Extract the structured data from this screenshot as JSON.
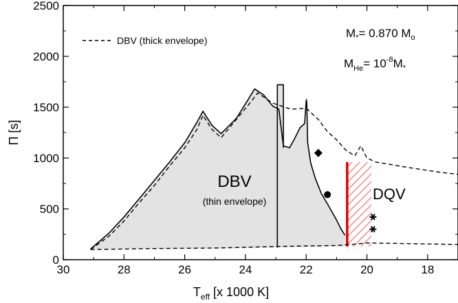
{
  "chart_data": {
    "type": "line",
    "xlabel": "T",
    "xlabel_sub": "eff",
    "xlabel_unit": " [x 1000 K]",
    "ylabel": "Π [s]",
    "xlim": [
      30,
      17
    ],
    "ylim": [
      0,
      2500
    ],
    "x_ticks": [
      30,
      28,
      26,
      24,
      22,
      20,
      18
    ],
    "y_ticks": [
      0,
      500,
      1000,
      1500,
      2000,
      2500
    ],
    "legend": {
      "placement": "top-left",
      "entries": [
        {
          "label": "DBV (thick envelope)",
          "style": "dashed"
        }
      ]
    },
    "annotations": {
      "mass": {
        "lhs": "M",
        "lhs_sub": "*",
        "rhs": "= 0.870 M",
        "rhs_sub": "o"
      },
      "helium": {
        "lhs": "M",
        "lhs_sub": "He",
        "rhs": "= 10",
        "rhs_sup": "-8",
        "tail": "M",
        "tail_sub": "*"
      },
      "dbv_label": "DBV",
      "dbv_sub": "(thin envelope)",
      "dqv_label": "DQV"
    },
    "series": [
      {
        "role": "thin-envelope-upper",
        "style": "solid",
        "points": [
          [
            29.1,
            105
          ],
          [
            28.5,
            260
          ],
          [
            28.0,
            420
          ],
          [
            27.5,
            600
          ],
          [
            27.0,
            780
          ],
          [
            26.5,
            960
          ],
          [
            26.0,
            1150
          ],
          [
            25.6,
            1350
          ],
          [
            25.4,
            1460
          ],
          [
            25.1,
            1320
          ],
          [
            24.8,
            1240
          ],
          [
            24.3,
            1390
          ],
          [
            23.9,
            1580
          ],
          [
            23.7,
            1680
          ],
          [
            23.4,
            1620
          ],
          [
            23.1,
            1510
          ],
          [
            22.9,
            1480
          ],
          [
            22.75,
            1120
          ],
          [
            22.55,
            1100
          ],
          [
            22.4,
            1180
          ],
          [
            22.2,
            1300
          ],
          [
            22.05,
            1340
          ],
          [
            22.0,
            1560
          ],
          [
            21.98,
            1580
          ]
        ]
      },
      {
        "role": "thin-envelope-lower",
        "style": "solid",
        "points": [
          [
            21.98,
            1560
          ],
          [
            21.95,
            1150
          ],
          [
            21.85,
            950
          ],
          [
            21.7,
            800
          ],
          [
            21.5,
            650
          ],
          [
            21.3,
            550
          ],
          [
            21.15,
            470
          ],
          [
            21.0,
            390
          ],
          [
            20.85,
            300
          ],
          [
            20.72,
            240
          ]
        ]
      },
      {
        "role": "thin-envelope-blue-edge",
        "style": "solid",
        "points": [
          [
            22.95,
            120
          ],
          [
            22.95,
            1720
          ],
          [
            22.75,
            1720
          ],
          [
            22.75,
            1100
          ]
        ]
      },
      {
        "role": "thick-envelope-upper",
        "style": "dashed",
        "points": [
          [
            29.1,
            100
          ],
          [
            28.5,
            230
          ],
          [
            28.0,
            380
          ],
          [
            27.5,
            560
          ],
          [
            27.0,
            730
          ],
          [
            26.5,
            920
          ],
          [
            26.0,
            1100
          ],
          [
            25.6,
            1280
          ],
          [
            25.4,
            1420
          ],
          [
            25.1,
            1280
          ],
          [
            24.8,
            1200
          ],
          [
            24.3,
            1380
          ],
          [
            23.8,
            1560
          ],
          [
            23.6,
            1640
          ],
          [
            23.1,
            1540
          ],
          [
            22.5,
            1480
          ],
          [
            22.0,
            1490
          ],
          [
            21.6,
            1380
          ],
          [
            21.3,
            1260
          ],
          [
            21.0,
            1180
          ],
          [
            20.7,
            1080
          ],
          [
            20.4,
            1020
          ],
          [
            20.2,
            1120
          ],
          [
            20.0,
            1000
          ],
          [
            19.7,
            960
          ],
          [
            18.7,
            910
          ],
          [
            17.6,
            860
          ],
          [
            17.0,
            840
          ]
        ]
      },
      {
        "role": "thick-envelope-lower",
        "style": "dashed",
        "points": [
          [
            29.1,
            100
          ],
          [
            27.0,
            110
          ],
          [
            25.0,
            115
          ],
          [
            23.0,
            130
          ],
          [
            22.0,
            135
          ],
          [
            21.0,
            140
          ],
          [
            20.5,
            150
          ],
          [
            20.0,
            165
          ],
          [
            18.0,
            155
          ],
          [
            17.0,
            150
          ]
        ]
      }
    ],
    "dbv_region": {
      "fill": "#e3e3e3",
      "points": [
        [
          29.1,
          105
        ],
        [
          28.5,
          260
        ],
        [
          28.0,
          420
        ],
        [
          27.5,
          600
        ],
        [
          27.0,
          780
        ],
        [
          26.5,
          960
        ],
        [
          26.0,
          1150
        ],
        [
          25.6,
          1350
        ],
        [
          25.4,
          1460
        ],
        [
          25.1,
          1320
        ],
        [
          24.8,
          1240
        ],
        [
          24.3,
          1390
        ],
        [
          23.9,
          1580
        ],
        [
          23.7,
          1680
        ],
        [
          23.4,
          1620
        ],
        [
          23.1,
          1510
        ],
        [
          22.95,
          1500
        ],
        [
          22.95,
          1720
        ],
        [
          22.75,
          1720
        ],
        [
          22.75,
          1120
        ],
        [
          22.55,
          1100
        ],
        [
          22.4,
          1180
        ],
        [
          22.2,
          1300
        ],
        [
          22.05,
          1340
        ],
        [
          22.0,
          1560
        ],
        [
          21.98,
          1580
        ],
        [
          21.95,
          1150
        ],
        [
          21.85,
          950
        ],
        [
          21.7,
          800
        ],
        [
          21.5,
          650
        ],
        [
          21.3,
          550
        ],
        [
          21.15,
          470
        ],
        [
          21.0,
          390
        ],
        [
          20.85,
          300
        ],
        [
          20.72,
          240
        ],
        [
          20.72,
          130
        ],
        [
          22.95,
          120
        ],
        [
          25.0,
          112
        ],
        [
          27.0,
          108
        ],
        [
          29.1,
          105
        ]
      ]
    },
    "dqv_strip": {
      "solid_edge": {
        "x": 20.65,
        "y_range": [
          130,
          960
        ],
        "color": "#e00000"
      },
      "hatched": {
        "x_range": [
          20.65,
          19.85
        ],
        "y_range": [
          130,
          960
        ],
        "color": "#f08a8a"
      }
    },
    "markers": [
      {
        "symbol": "diamond",
        "x": 21.6,
        "y": 1050
      },
      {
        "symbol": "circle",
        "x": 21.3,
        "y": 640
      },
      {
        "symbol": "star",
        "x": 19.8,
        "y": 420
      },
      {
        "symbol": "star",
        "x": 19.8,
        "y": 300
      }
    ]
  }
}
